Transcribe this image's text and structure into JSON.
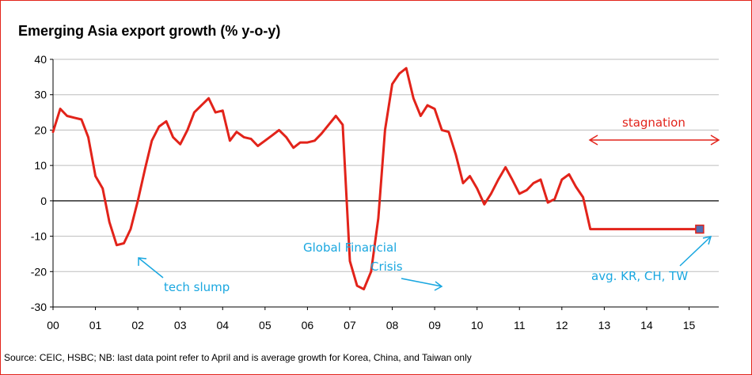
{
  "chart_data": {
    "type": "line",
    "title": "Emerging Asia export growth (% y-o-y)",
    "source": "Source: CEIC, HSBC; NB: last data point refer to April and is average growth for Korea, China, and Taiwan only",
    "xlabel": "",
    "ylabel": "",
    "ylim": [
      -30,
      40
    ],
    "yticks": [
      "40",
      "30",
      "20",
      "10",
      "0",
      "-10",
      "-20",
      "-30"
    ],
    "xticks": [
      "00",
      "01",
      "02",
      "03",
      "04",
      "05",
      "06",
      "07",
      "08",
      "09",
      "10",
      "11",
      "12",
      "13",
      "14",
      "15"
    ],
    "grid": true,
    "legend": "none",
    "colors": {
      "line": "#e2231a",
      "annotation": "#1aa7e0",
      "marker": "#4f6fb5"
    },
    "series": [
      {
        "x": [
          2000.0,
          2000.17,
          2000.33,
          2000.5,
          2000.67,
          2000.83,
          2001.0,
          2001.17,
          2001.33,
          2001.5,
          2001.67,
          2001.83,
          2002.0,
          2002.17,
          2002.33,
          2002.5,
          2002.67,
          2002.83,
          2003.0,
          2003.17,
          2003.33,
          2003.5,
          2003.67,
          2003.83,
          2004.0,
          2004.17,
          2004.33,
          2004.5,
          2004.67,
          2004.83,
          2005.0,
          2005.17,
          2005.33,
          2005.5,
          2005.67,
          2005.83,
          2006.0,
          2006.17,
          2006.33,
          2006.5,
          2006.67,
          2006.83,
          2007.0,
          2007.17,
          2007.33,
          2007.5,
          2007.67,
          2007.83,
          2008.0,
          2008.17,
          2008.33,
          2008.5,
          2008.67,
          2008.83,
          2009.0,
          2009.17,
          2009.33,
          2009.5,
          2009.67,
          2009.83,
          2010.0,
          2010.17,
          2010.33,
          2010.5,
          2010.67,
          2010.83,
          2011.0,
          2011.17,
          2011.33,
          2011.5,
          2011.67,
          2011.83,
          2012.0,
          2012.17,
          2012.33,
          2012.5,
          2012.67,
          2012.83,
          2013.0,
          2013.17,
          2013.33,
          2013.5,
          2013.67,
          2013.83,
          2014.0,
          2014.17,
          2014.33,
          2014.5,
          2014.67,
          2014.83,
          2015.0,
          2015.17,
          2015.25
        ],
        "values": [
          19.5,
          26.0,
          24.0,
          23.5,
          23.0,
          18.0,
          7.0,
          3.5,
          -6.0,
          -12.5,
          -12.0,
          -8.0,
          0.0,
          9.0,
          17.0,
          21.0,
          22.5,
          18.0,
          16.0,
          20.0,
          25.0,
          27.0,
          29.0,
          25.0,
          25.5,
          17.0,
          19.5,
          18.0,
          17.5,
          15.5,
          17.0,
          18.5,
          20.0,
          18.0,
          15.0,
          16.5,
          16.5,
          17.0,
          19.0,
          21.5,
          24.0,
          21.5,
          -17.0,
          -24.0,
          -25.0,
          -20.0,
          -5.0,
          20.0,
          33.0,
          36.0,
          37.5,
          29.0,
          24.0,
          27.0,
          26.0,
          20.0,
          19.5,
          13.0,
          5.0,
          7.0,
          3.5,
          -1.0,
          2.0,
          6.0,
          9.5,
          6.0,
          2.0,
          3.0,
          5.0,
          6.0,
          -0.5,
          0.5,
          6.0,
          7.5,
          4.0,
          1.0,
          -8.0,
          -8.0,
          -8.0,
          -8.0,
          -8.0,
          -8.0,
          -8.0,
          -8.0,
          -8.0,
          -8.0,
          -8.0,
          -8.0,
          -8.0,
          -8.0,
          -8.0,
          -8.0,
          -8.0
        ]
      }
    ],
    "last_point": {
      "x": 2015.25,
      "y": -8.0
    },
    "annotations": {
      "tech_slump": "tech slump",
      "gfc_line1": "Global Financial",
      "gfc_line2": "Crisis",
      "stagnation": "stagnation",
      "avg": "avg. KR, CH, TW"
    }
  }
}
